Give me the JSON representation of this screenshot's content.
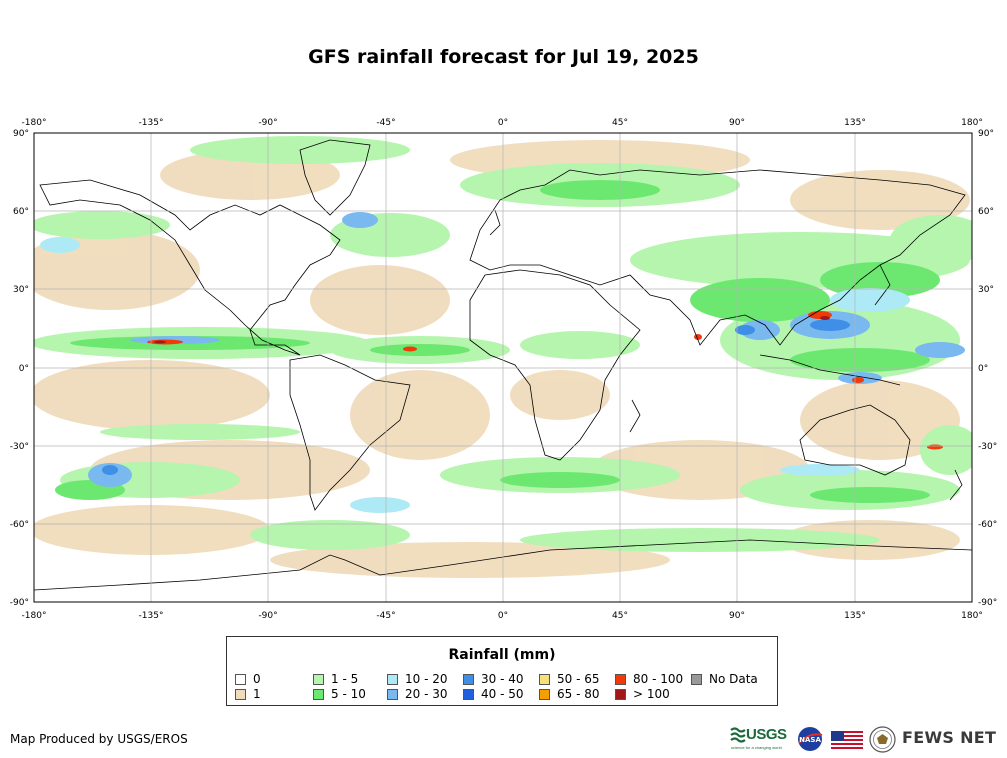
{
  "title": "GFS rainfall forecast for Jul 19, 2025",
  "map": {
    "lon_ticks": [
      "-180°",
      "-135°",
      "-90°",
      "-45°",
      "0°",
      "45°",
      "90°",
      "135°",
      "180°"
    ],
    "lat_ticks": [
      "90°",
      "60°",
      "30°",
      "0°",
      "-30°",
      "-60°",
      "-90°"
    ]
  },
  "legend": {
    "title": "Rainfall (mm)",
    "items": [
      {
        "label": "0",
        "color": "#ffffff"
      },
      {
        "label": "1",
        "color": "#f0dcbc"
      },
      {
        "label": "1 - 5",
        "color": "#b5f5ae"
      },
      {
        "label": "5 - 10",
        "color": "#6ce870"
      },
      {
        "label": "10 - 20",
        "color": "#aeeaf5"
      },
      {
        "label": "20 - 30",
        "color": "#7ab8f0"
      },
      {
        "label": "30 - 40",
        "color": "#3f8fe6"
      },
      {
        "label": "40 - 50",
        "color": "#1f5fe0"
      },
      {
        "label": "50 - 65",
        "color": "#f7e07a"
      },
      {
        "label": "65 - 80",
        "color": "#f5a000"
      },
      {
        "label": "80 - 100",
        "color": "#f03a0a"
      },
      {
        "label": "> 100",
        "color": "#a01818"
      },
      {
        "label": "No Data",
        "color": "#999999"
      }
    ]
  },
  "footer": {
    "credit": "Map Produced by USGS/EROS",
    "usgs_text": "USGS",
    "usgs_tagline": "science for a changing world",
    "nasa_text": "NASA",
    "fews_text": "FEWS NET"
  }
}
